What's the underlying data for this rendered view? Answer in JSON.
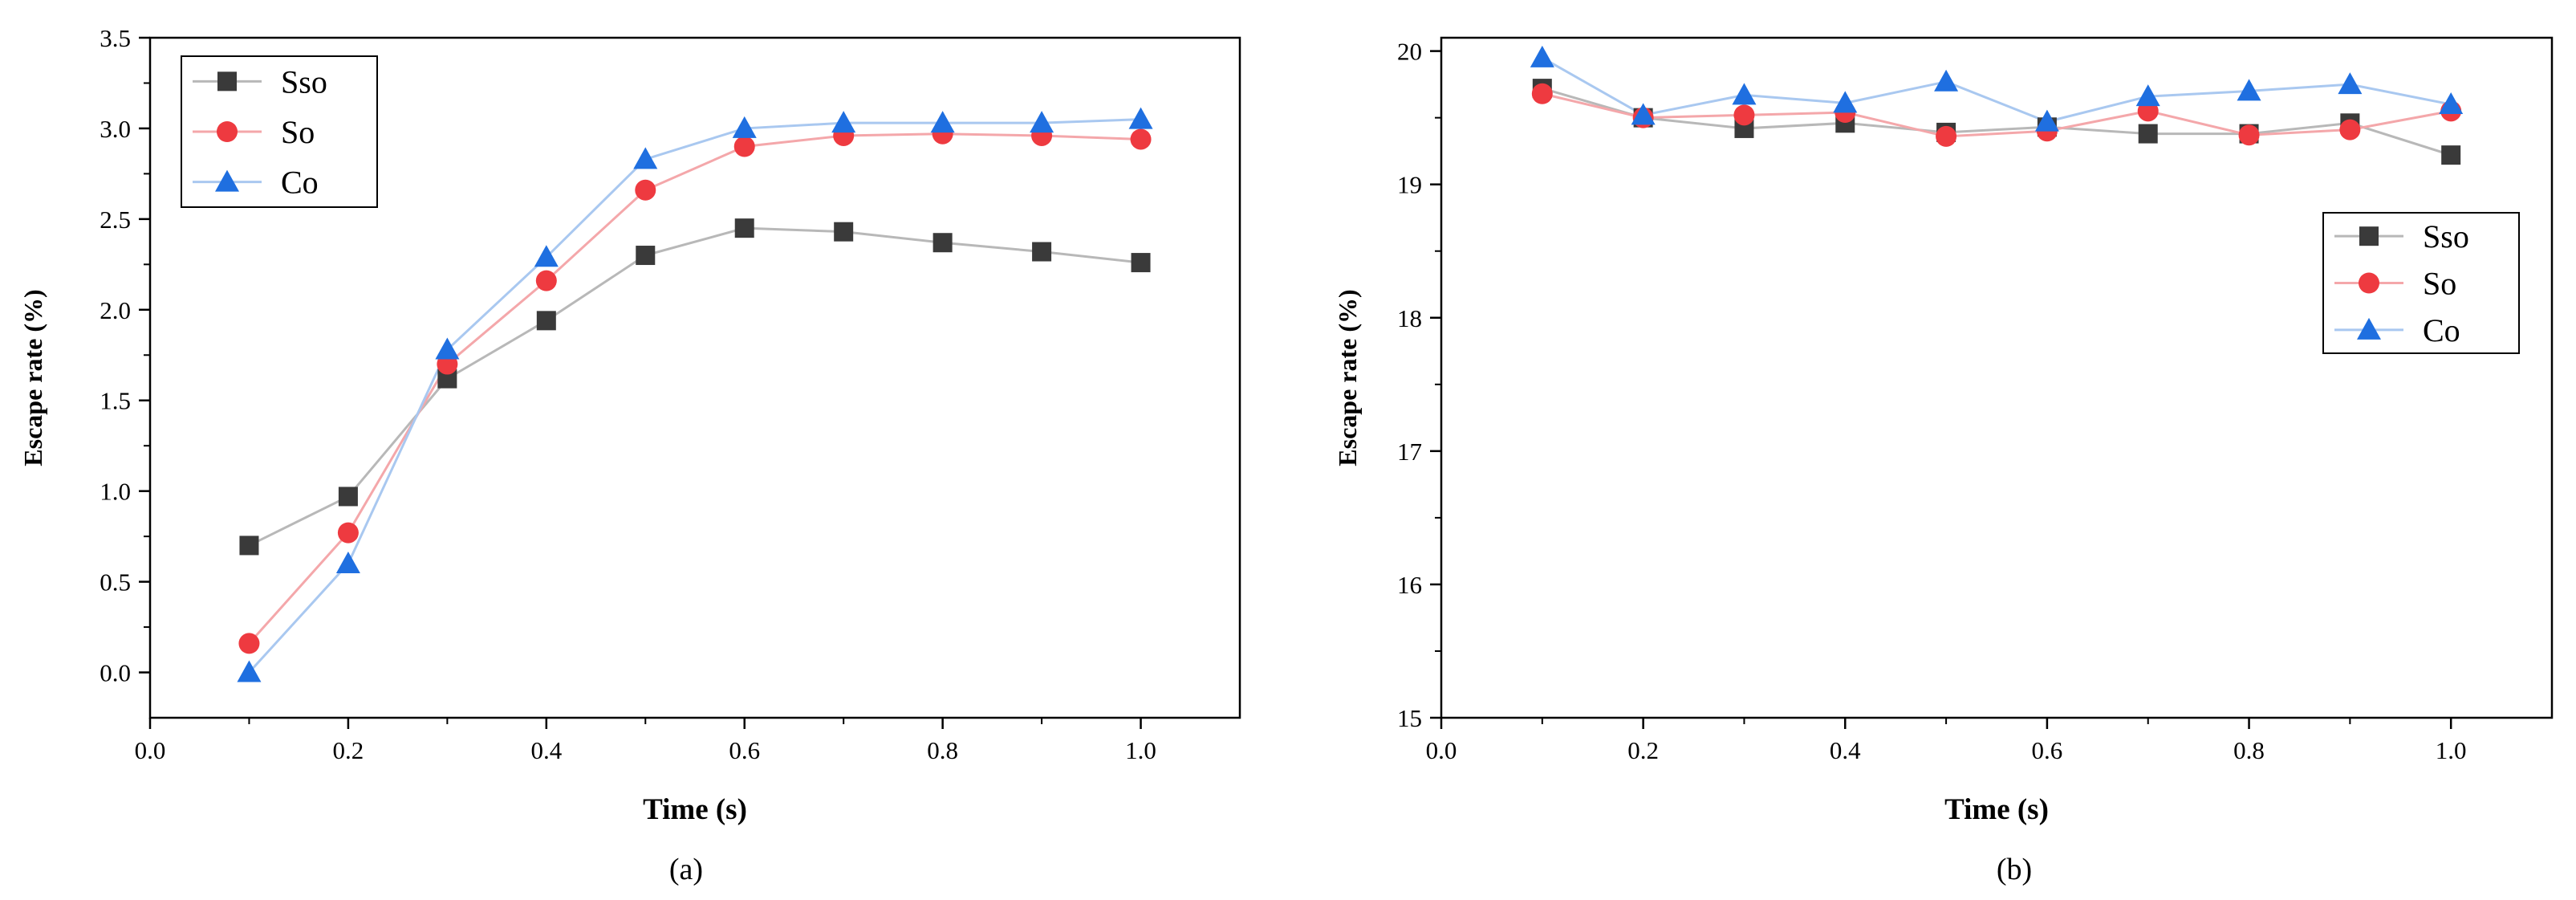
{
  "chart_data": [
    {
      "type": "line",
      "panel_label": "(a)",
      "xlabel": "Time (s)",
      "ylabel": "Escape rate (%)",
      "xlim": [
        0.0,
        1.1
      ],
      "ylim": [
        -0.25,
        3.5
      ],
      "x_ticks": [
        "0.0",
        "0.2",
        "0.4",
        "0.6",
        "0.8",
        "1.0"
      ],
      "y_ticks": [
        "0.0",
        "0.5",
        "1.0",
        "1.5",
        "2.0",
        "2.5",
        "3.0",
        "3.5"
      ],
      "grid": false,
      "legend_position": "top-left",
      "x": [
        0.1,
        0.2,
        0.3,
        0.4,
        0.5,
        0.6,
        0.7,
        0.8,
        0.9,
        1.0
      ],
      "series": [
        {
          "name": "Sso",
          "marker": "square",
          "marker_color": "#3a3a3a",
          "line_color": "#b8b8b8",
          "values": [
            0.7,
            0.97,
            1.62,
            1.94,
            2.3,
            2.45,
            2.43,
            2.37,
            2.32,
            2.26
          ]
        },
        {
          "name": "So",
          "marker": "circle",
          "marker_color": "#ee3a40",
          "line_color": "#f4a7aa",
          "values": [
            0.16,
            0.77,
            1.7,
            2.16,
            2.66,
            2.9,
            2.96,
            2.97,
            2.96,
            2.94
          ]
        },
        {
          "name": "Co",
          "marker": "triangle",
          "marker_color": "#1f6fe0",
          "line_color": "#a9c8f0",
          "values": [
            0.0,
            0.6,
            1.78,
            2.29,
            2.83,
            3.0,
            3.03,
            3.03,
            3.03,
            3.05
          ]
        }
      ]
    },
    {
      "type": "line",
      "panel_label": "(b)",
      "xlabel": "Time (s)",
      "ylabel": "Escape rate (%)",
      "xlim": [
        0.0,
        1.1
      ],
      "ylim": [
        15,
        20.1
      ],
      "x_ticks": [
        "0.0",
        "0.2",
        "0.4",
        "0.6",
        "0.8",
        "1.0"
      ],
      "y_ticks": [
        "15",
        "16",
        "17",
        "18",
        "19",
        "20"
      ],
      "grid": false,
      "legend_position": "right",
      "x": [
        0.1,
        0.2,
        0.3,
        0.4,
        0.5,
        0.6,
        0.7,
        0.8,
        0.9,
        1.0
      ],
      "series": [
        {
          "name": "Sso",
          "marker": "square",
          "marker_color": "#3a3a3a",
          "line_color": "#b8b8b8",
          "values": [
            19.72,
            19.5,
            19.42,
            19.46,
            19.39,
            19.43,
            19.38,
            19.38,
            19.46,
            19.22
          ]
        },
        {
          "name": "So",
          "marker": "circle",
          "marker_color": "#ee3a40",
          "line_color": "#f4a7aa",
          "values": [
            19.68,
            19.5,
            19.52,
            19.54,
            19.36,
            19.4,
            19.55,
            19.37,
            19.41,
            19.55
          ]
        },
        {
          "name": "Co",
          "marker": "triangle",
          "marker_color": "#1f6fe0",
          "line_color": "#a9c8f0",
          "values": [
            19.95,
            19.52,
            19.67,
            19.61,
            19.77,
            19.47,
            19.66,
            19.7,
            19.75,
            19.6
          ]
        }
      ]
    }
  ]
}
